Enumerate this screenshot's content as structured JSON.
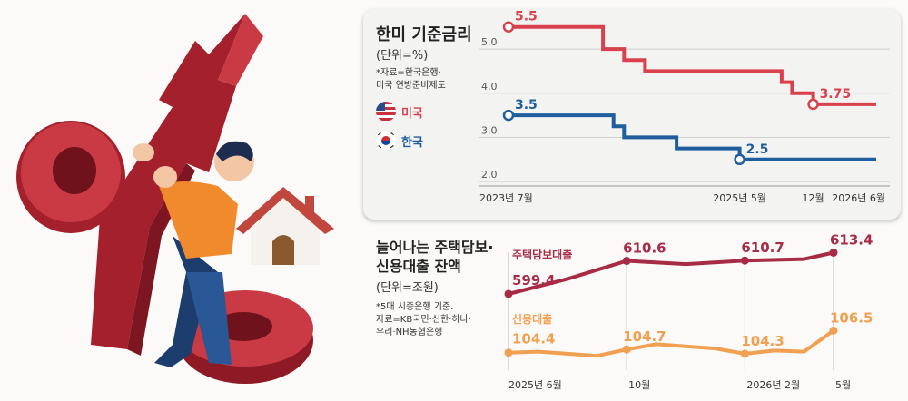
{
  "top_panel": {
    "title": "한미 기준금리",
    "unit": "(단위=%)",
    "note": "*자료=한국은행·\n 미국 연방준비제도",
    "legend_us": "미국",
    "legend_kr": "한국",
    "colors": {
      "us": "#d9414c",
      "kr": "#1f5d9c"
    }
  },
  "bottom_panel": {
    "title_line1": "늘어나는 주택담보·",
    "title_line2": "신용대출 잔액",
    "unit": "(단위=조원)",
    "note": "*5대 시중은행 기준.\n 자료=KB국민·신한·하나·\n 우리·NH농협은행",
    "colors": {
      "mortgage": "#a82b45",
      "credit": "#f0a050"
    }
  },
  "chart_data": [
    {
      "type": "line",
      "title": "한미 기준금리",
      "ylabel": "(단위=%)",
      "ylim": [
        1.9,
        5.7
      ],
      "yticks": [
        "5.0",
        "4.0",
        "3.0",
        "2.0"
      ],
      "ytick_values": [
        5.0,
        4.0,
        3.0,
        2.0
      ],
      "x_tick_labels": [
        {
          "label": "2023년 7월",
          "x": 0
        },
        {
          "label": "2025년 5월",
          "x": 22
        },
        {
          "label": "12월",
          "x": 29
        },
        {
          "label": "2026년 6월",
          "x": 35
        }
      ],
      "step": true,
      "series": [
        {
          "name": "미국",
          "points": [
            [
              0,
              5.5
            ],
            [
              9,
              5.5
            ],
            [
              9,
              5.0
            ],
            [
              11,
              5.0
            ],
            [
              11,
              4.75
            ],
            [
              13,
              4.75
            ],
            [
              13,
              4.5
            ],
            [
              26,
              4.5
            ],
            [
              26,
              4.25
            ],
            [
              27,
              4.25
            ],
            [
              27,
              4.0
            ],
            [
              29,
              4.0
            ],
            [
              29,
              3.75
            ],
            [
              35,
              3.75
            ]
          ],
          "labels": [
            {
              "x": 0,
              "y": 5.5,
              "text": "5.5"
            },
            {
              "x": 29,
              "y": 3.75,
              "text": "3.75"
            }
          ]
        },
        {
          "name": "한국",
          "points": [
            [
              0,
              3.5
            ],
            [
              10,
              3.5
            ],
            [
              10,
              3.25
            ],
            [
              11,
              3.25
            ],
            [
              11,
              3.0
            ],
            [
              16,
              3.0
            ],
            [
              16,
              2.75
            ],
            [
              22,
              2.75
            ],
            [
              22,
              2.5
            ],
            [
              35,
              2.5
            ]
          ],
          "labels": [
            {
              "x": 0,
              "y": 3.5,
              "text": "3.5"
            },
            {
              "x": 22,
              "y": 2.5,
              "text": "2.5"
            }
          ]
        }
      ]
    },
    {
      "type": "line",
      "title": "늘어나는 주택담보·신용대출 잔액",
      "ylabel": "(단위=조원)",
      "x_tick_labels": [
        {
          "label": "2025년 6월",
          "x": 0
        },
        {
          "label": "10월",
          "x": 4
        },
        {
          "label": "2026년 2월",
          "x": 8
        },
        {
          "label": "5월",
          "x": 11
        }
      ],
      "series": [
        {
          "name": "주택담보대출",
          "values": [
            [
              0,
              599.4
            ],
            [
              2,
              604.5
            ],
            [
              4,
              610.6
            ],
            [
              6,
              609.5
            ],
            [
              8,
              610.7
            ],
            [
              10,
              611.2
            ],
            [
              11,
              613.4
            ]
          ],
          "ylim": [
            596,
            616
          ],
          "labels": [
            {
              "x": 0,
              "text": "599.4"
            },
            {
              "x": 4,
              "text": "610.6"
            },
            {
              "x": 8,
              "text": "610.7"
            },
            {
              "x": 11,
              "text": "613.4"
            }
          ]
        },
        {
          "name": "신용대출",
          "values": [
            [
              0,
              104.4
            ],
            [
              1,
              104.5
            ],
            [
              2,
              104.3
            ],
            [
              3,
              104.1
            ],
            [
              4,
              104.7
            ],
            [
              5,
              105.2
            ],
            [
              6,
              105.0
            ],
            [
              7,
              104.8
            ],
            [
              8,
              104.3
            ],
            [
              9,
              104.6
            ],
            [
              10,
              104.5
            ],
            [
              11,
              106.5
            ]
          ],
          "ylim": [
            103.6,
            108.6
          ],
          "labels": [
            {
              "x": 0,
              "text": "104.4"
            },
            {
              "x": 4,
              "text": "104.7"
            },
            {
              "x": 8,
              "text": "104.3"
            },
            {
              "x": 11,
              "text": "106.5"
            }
          ]
        }
      ]
    }
  ]
}
